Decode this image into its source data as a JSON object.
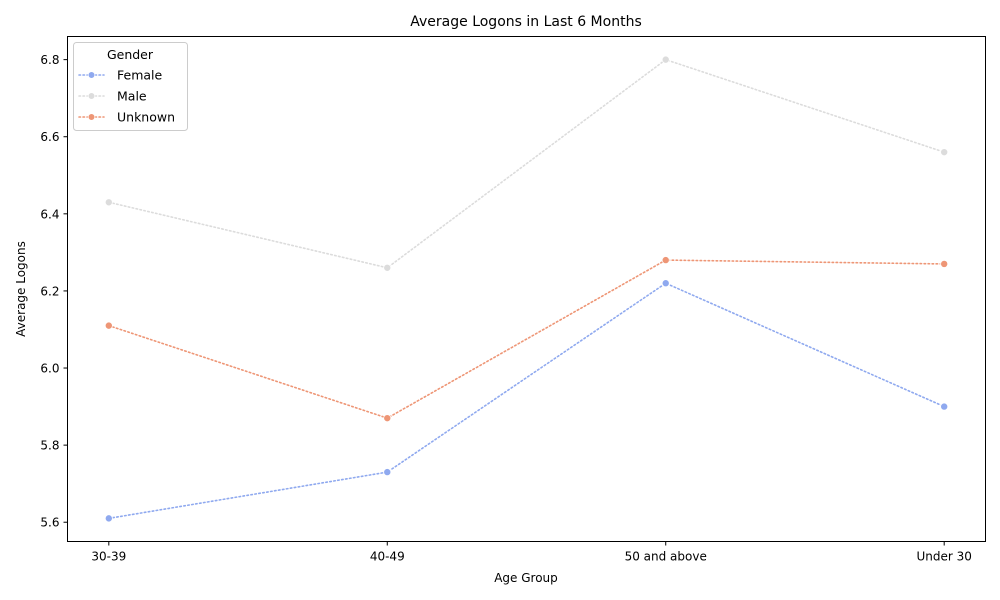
{
  "chart_data": {
    "type": "line",
    "title": "Average Logons in Last 6 Months",
    "xlabel": "Age Group",
    "ylabel": "Average Logons",
    "categories": [
      "30-39",
      "40-49",
      "50 and above",
      "Under 30"
    ],
    "ylim": [
      5.55,
      6.86
    ],
    "yticks": [
      5.6,
      5.8,
      6.0,
      6.2,
      6.4,
      6.6,
      6.8
    ],
    "ytick_labels": [
      "5.6",
      "5.8",
      "6.0",
      "6.2",
      "6.4",
      "6.6",
      "6.8"
    ],
    "grid": false,
    "legend": {
      "title": "Gender",
      "placement": "upper-left"
    },
    "line_style": "dotted",
    "marker": "circle",
    "series": [
      {
        "name": "Female",
        "values": [
          5.61,
          5.73,
          6.22,
          5.9
        ],
        "color": "#8fa9ef"
      },
      {
        "name": "Male",
        "values": [
          6.43,
          6.26,
          6.8,
          6.56
        ],
        "color": "#dcdcdc"
      },
      {
        "name": "Unknown",
        "values": [
          6.11,
          5.87,
          6.28,
          6.27
        ],
        "color": "#ee9676"
      }
    ]
  }
}
